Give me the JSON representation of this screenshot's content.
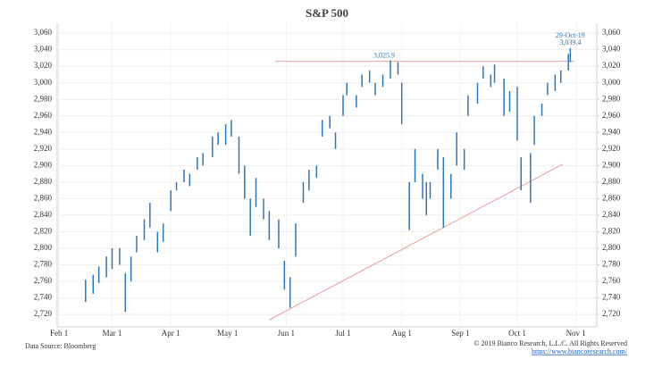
{
  "chart_data": {
    "type": "ohlc",
    "title": "S&P 500",
    "source": "Data Source: Bloomberg",
    "copyright": "© 2019 Bianco Research, L.L.C. All Rights Reserved",
    "url": "https://www.biancoresearch.com/",
    "color": "#2e75b6",
    "grid": true,
    "x": [
      "02-15",
      "02-19",
      "02-22",
      "02-26",
      "03-01",
      "03-05",
      "03-08",
      "03-11",
      "03-14",
      "03-18",
      "03-21",
      "03-25",
      "03-28",
      "04-01",
      "04-04",
      "04-08",
      "04-11",
      "04-15",
      "04-18",
      "04-23",
      "04-26",
      "04-30",
      "05-03",
      "05-07",
      "05-10",
      "05-13",
      "05-16",
      "05-20",
      "05-23",
      "05-28",
      "05-31",
      "06-03",
      "06-06",
      "06-10",
      "06-13",
      "06-17",
      "06-20",
      "06-24",
      "06-27",
      "07-01",
      "07-03",
      "07-08",
      "07-11",
      "07-15",
      "07-18",
      "07-22",
      "07-26",
      "07-30",
      "08-01",
      "08-05",
      "08-08",
      "08-12",
      "08-14",
      "08-16",
      "08-20",
      "08-23",
      "08-27",
      "08-30",
      "09-03",
      "09-05",
      "09-10",
      "09-13",
      "09-17",
      "09-19",
      "09-24",
      "09-27",
      "10-01",
      "10-03",
      "10-08",
      "10-10",
      "10-14",
      "10-17",
      "10-21",
      "10-24",
      "10-28",
      "10-29"
    ],
    "high": [
      2762,
      2768,
      2778,
      2790,
      2800,
      2800,
      2770,
      2790,
      2815,
      2835,
      2855,
      2820,
      2830,
      2870,
      2880,
      2895,
      2890,
      2910,
      2915,
      2935,
      2940,
      2950,
      2955,
      2935,
      2900,
      2860,
      2885,
      2860,
      2845,
      2835,
      2785,
      2765,
      2830,
      2880,
      2895,
      2900,
      2955,
      2960,
      2940,
      2985,
      3000,
      2985,
      3010,
      3015,
      3000,
      3010,
      3027,
      3025,
      3000,
      2880,
      2920,
      2890,
      2880,
      2880,
      2920,
      2910,
      2890,
      2940,
      2920,
      2985,
      3000,
      3020,
      3010,
      3022,
      3005,
      2990,
      2995,
      2910,
      2915,
      2960,
      2975,
      3000,
      3010,
      3015,
      3035,
      3042
    ],
    "low": [
      2735,
      2745,
      2758,
      2765,
      2775,
      2780,
      2723,
      2760,
      2795,
      2810,
      2825,
      2795,
      2808,
      2845,
      2870,
      2880,
      2875,
      2895,
      2900,
      2910,
      2925,
      2925,
      2935,
      2890,
      2860,
      2815,
      2850,
      2835,
      2810,
      2800,
      2750,
      2728,
      2790,
      2855,
      2870,
      2885,
      2935,
      2945,
      2920,
      2960,
      2985,
      2970,
      2995,
      3000,
      2985,
      2995,
      3005,
      3010,
      2950,
      2822,
      2880,
      2860,
      2840,
      2860,
      2895,
      2825,
      2860,
      2900,
      2895,
      2960,
      2975,
      3005,
      2995,
      3000,
      2960,
      2965,
      2930,
      2870,
      2855,
      2925,
      2960,
      2985,
      2990,
      3000,
      3015,
      3025
    ],
    "lines": [
      {
        "color": "#e8a0a0",
        "x": [
          "05-26",
          "10-31"
        ],
        "y": [
          3025.9,
          3025.9
        ]
      },
      {
        "color": "#e8a0a0",
        "x": [
          "05-23",
          "10-25"
        ],
        "y": [
          2713.5,
          2901.6
        ]
      }
    ],
    "annotations": [
      {
        "text": "3,025.9"
      },
      {
        "text": "29-Oct-19"
      },
      {
        "text": "3,039.4"
      }
    ],
    "xlim": [
      "01-31",
      "11-12"
    ],
    "xticks": [
      {
        "value": "02-01",
        "label": "Feb 1"
      },
      {
        "value": "03-01",
        "label": "Mar 1"
      },
      {
        "value": "04-01",
        "label": "Apr 1"
      },
      {
        "value": "05-01",
        "label": "May 1"
      },
      {
        "value": "06-01",
        "label": "Jun 1"
      },
      {
        "value": "07-01",
        "label": "Jul 1"
      },
      {
        "value": "08-01",
        "label": "Aug 1"
      },
      {
        "value": "09-01",
        "label": "Sep 1"
      },
      {
        "value": "10-01",
        "label": "Oct 1"
      },
      {
        "value": "11-01",
        "label": "Nov 1"
      }
    ],
    "ylim": [
      2705,
      3072
    ],
    "yticks": [
      {
        "value": 2720,
        "label": "2,720"
      },
      {
        "value": 2740,
        "label": "2,740"
      },
      {
        "value": 2760,
        "label": "2,760"
      },
      {
        "value": 2780,
        "label": "2,780"
      },
      {
        "value": 2800,
        "label": "2,800"
      },
      {
        "value": 2820,
        "label": "2,820"
      },
      {
        "value": 2840,
        "label": "2,840"
      },
      {
        "value": 2860,
        "label": "2,860"
      },
      {
        "value": 2880,
        "label": "2,880"
      },
      {
        "value": 2900,
        "label": "2,900"
      },
      {
        "value": 2920,
        "label": "2,920"
      },
      {
        "value": 2940,
        "label": "2,940"
      },
      {
        "value": 2960,
        "label": "2,960"
      },
      {
        "value": 2980,
        "label": "2,980"
      },
      {
        "value": 3000,
        "label": "3,000"
      },
      {
        "value": 3020,
        "label": "3,020"
      },
      {
        "value": 3040,
        "label": "3,040"
      },
      {
        "value": 3060,
        "label": "3,060"
      }
    ],
    "y2lim": [
      2705,
      3072
    ],
    "y2ticks": [
      {
        "value": 2720,
        "label": "2,720"
      },
      {
        "value": 2740,
        "label": "2,740"
      },
      {
        "value": 2760,
        "label": "2,760"
      },
      {
        "value": 2780,
        "label": "2,780"
      },
      {
        "value": 2800,
        "label": "2,800"
      },
      {
        "value": 2820,
        "label": "2,820"
      },
      {
        "value": 2840,
        "label": "2,840"
      },
      {
        "value": 2860,
        "label": "2,860"
      },
      {
        "value": 2880,
        "label": "2,880"
      },
      {
        "value": 2900,
        "label": "2,900"
      },
      {
        "value": 2920,
        "label": "2,920"
      },
      {
        "value": 2940,
        "label": "2,940"
      },
      {
        "value": 2960,
        "label": "2,960"
      },
      {
        "value": 2980,
        "label": "2,980"
      },
      {
        "value": 3000,
        "label": "3,000"
      },
      {
        "value": 3020,
        "label": "3,020"
      },
      {
        "value": 3040,
        "label": "3,040"
      },
      {
        "value": 3060,
        "label": "3,060"
      }
    ]
  }
}
